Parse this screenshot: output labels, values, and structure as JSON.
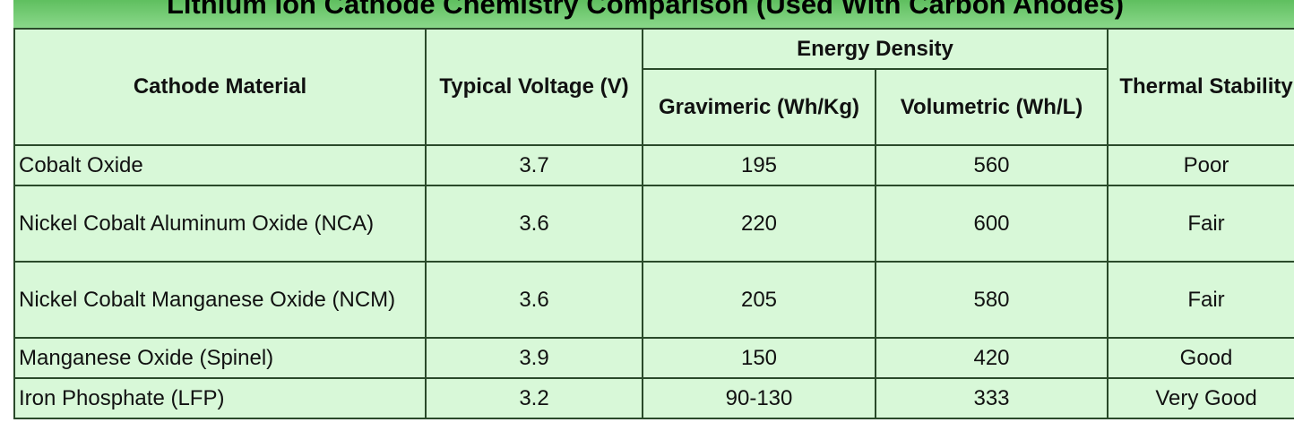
{
  "header": {
    "title": "Lithium Ion Cathode Chemistry Comparison (Used With Carbon Anodes)"
  },
  "table": {
    "columns": {
      "material": "Cathode Material",
      "voltage": "Typical Voltage (V)",
      "energy_density": "Energy Density",
      "gravimetric": "Gravimeric (Wh/Kg)",
      "volumetric": "Volumetric (Wh/L)",
      "thermal": "Thermal Stability"
    },
    "rows": [
      [
        "Cobalt Oxide",
        3.7,
        195,
        560,
        "Poor"
      ],
      [
        "Nickel Cobalt Aluminum Oxide (NCA)",
        3.6,
        220,
        600,
        "Fair"
      ],
      [
        "Nickel Cobalt Manganese Oxide (NCM)",
        3.6,
        205,
        580,
        "Fair"
      ],
      [
        "Manganese Oxide (Spinel)",
        3.9,
        150,
        420,
        "Good"
      ],
      [
        "Iron Phosphate (LFP)",
        3.2,
        "90-130",
        333,
        "Very Good"
      ]
    ]
  }
}
